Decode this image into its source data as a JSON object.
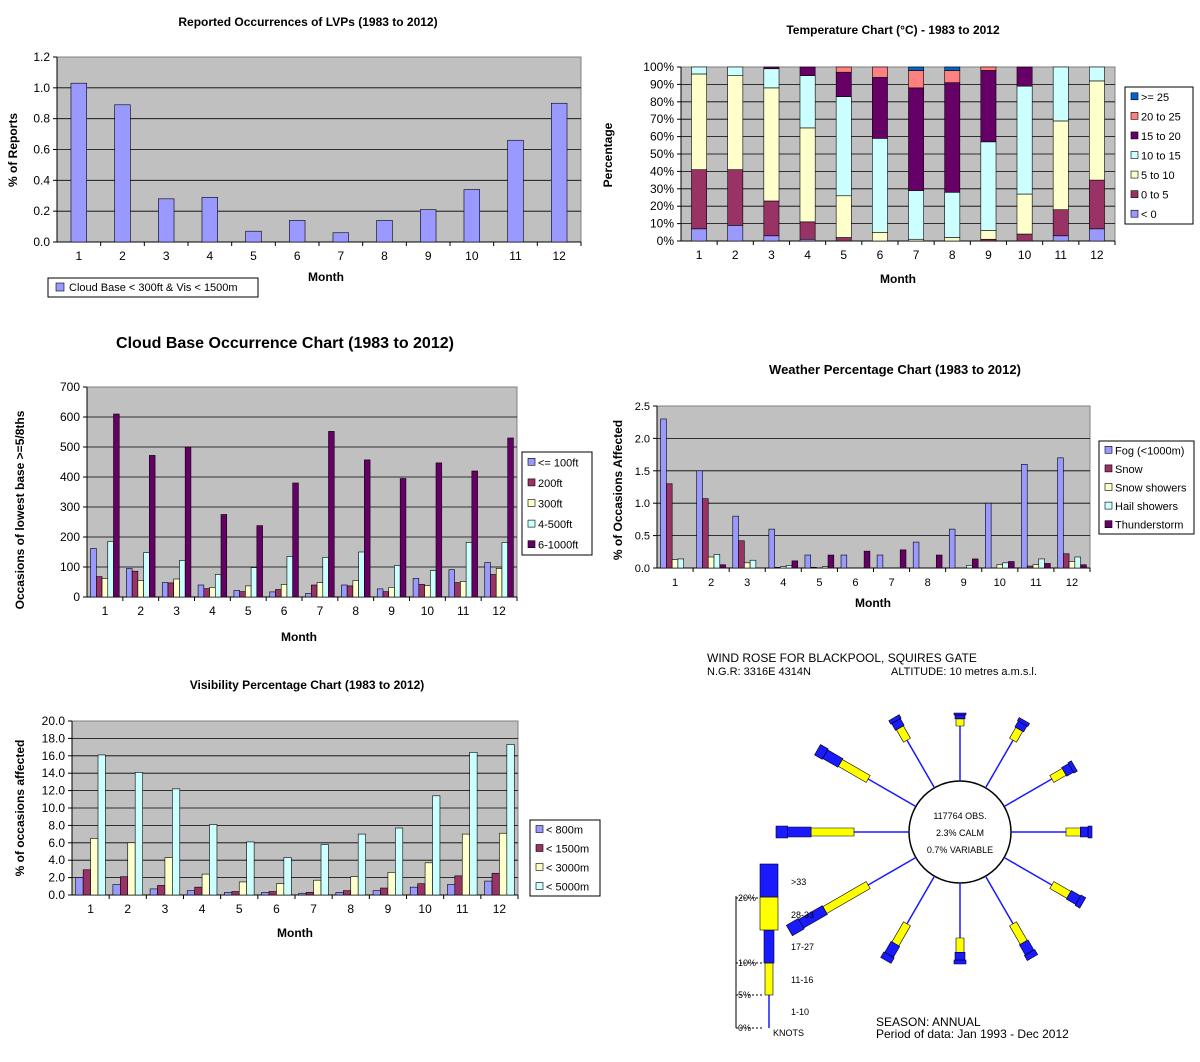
{
  "chart_data": [
    {
      "id": "lvp",
      "type": "bar",
      "title": "Reported Occurrences of LVPs (1983 to 2012)",
      "xlabel": "Month",
      "ylabel": "% of Reports",
      "categories": [
        "1",
        "2",
        "3",
        "4",
        "5",
        "6",
        "7",
        "8",
        "9",
        "10",
        "11",
        "12"
      ],
      "ylim": [
        0,
        1.2
      ],
      "yticks": [
        "0.0",
        "0.2",
        "0.4",
        "0.6",
        "0.8",
        "1.0",
        "1.2"
      ],
      "series": [
        {
          "name": "Cloud Base < 300ft & Vis < 1500m",
          "color": "#9999ff",
          "values": [
            1.03,
            0.89,
            0.28,
            0.29,
            0.07,
            0.14,
            0.06,
            0.14,
            0.21,
            0.34,
            0.66,
            0.9
          ]
        }
      ],
      "legend": "bottom-left",
      "grid": true
    },
    {
      "id": "temp",
      "type": "bar",
      "stacked": true,
      "title": "Temperature Chart (°C) - 1983 to 2012",
      "xlabel": "Month",
      "ylabel": "Percentage",
      "categories": [
        "1",
        "2",
        "3",
        "4",
        "5",
        "6",
        "7",
        "8",
        "9",
        "10",
        "11",
        "12"
      ],
      "ylim": [
        0,
        100
      ],
      "yticks": [
        "0%",
        "10%",
        "20%",
        "30%",
        "40%",
        "50%",
        "60%",
        "70%",
        "80%",
        "90%",
        "100%"
      ],
      "series": [
        {
          "name": "< 0",
          "color": "#9999ff",
          "values": [
            7,
            9,
            3,
            1,
            0,
            0,
            0,
            0,
            0,
            0,
            3,
            7
          ]
        },
        {
          "name": "0 to 5",
          "color": "#993366",
          "values": [
            34,
            32,
            20,
            10,
            2,
            0,
            0,
            0,
            1,
            4,
            15,
            28
          ]
        },
        {
          "name": "5 to 10",
          "color": "#ffffcc",
          "values": [
            55,
            54,
            65,
            54,
            24,
            5,
            1,
            2,
            5,
            23,
            51,
            57
          ]
        },
        {
          "name": "10 to 15",
          "color": "#ccffff",
          "values": [
            4,
            5,
            11,
            30,
            57,
            54,
            28,
            26,
            51,
            62,
            31,
            8
          ]
        },
        {
          "name": "15 to 20",
          "color": "#660066",
          "values": [
            0,
            0,
            1,
            5,
            14,
            35,
            59,
            63,
            41,
            11,
            0,
            0
          ]
        },
        {
          "name": "20 to 25",
          "color": "#ff8080",
          "values": [
            0,
            0,
            0,
            0,
            3,
            6,
            10,
            7,
            2,
            0,
            0,
            0
          ]
        },
        {
          "name": ">= 25",
          "color": "#0066cc",
          "values": [
            0,
            0,
            0,
            0,
            0,
            0,
            2,
            2,
            0,
            0,
            0,
            0
          ]
        }
      ],
      "legend": "right",
      "grid": true
    },
    {
      "id": "cloud",
      "type": "bar",
      "title": "Cloud Base Occurrence Chart (1983 to 2012)",
      "xlabel": "Month",
      "ylabel": "Occasions of lowest base >=5/8ths",
      "categories": [
        "1",
        "2",
        "3",
        "4",
        "5",
        "6",
        "7",
        "8",
        "9",
        "10",
        "11",
        "12"
      ],
      "ylim": [
        0,
        700
      ],
      "yticks": [
        "0",
        "100",
        "200",
        "300",
        "400",
        "500",
        "600",
        "700"
      ],
      "series": [
        {
          "name": "<= 100ft",
          "color": "#9999ff",
          "values": [
            162,
            95,
            48,
            40,
            22,
            17,
            12,
            40,
            27,
            62,
            91,
            115
          ]
        },
        {
          "name": "200ft",
          "color": "#993366",
          "values": [
            68,
            86,
            47,
            28,
            18,
            25,
            40,
            37,
            18,
            42,
            48,
            75
          ]
        },
        {
          "name": "300ft",
          "color": "#ffffcc",
          "values": [
            62,
            55,
            60,
            32,
            37,
            42,
            48,
            55,
            32,
            38,
            52,
            95
          ]
        },
        {
          "name": "4-500ft",
          "color": "#ccffff",
          "values": [
            185,
            148,
            122,
            75,
            98,
            135,
            132,
            150,
            105,
            88,
            182,
            182
          ]
        },
        {
          "name": "6-1000ft",
          "color": "#660066",
          "values": [
            610,
            472,
            500,
            275,
            238,
            380,
            552,
            457,
            395,
            447,
            420,
            530
          ]
        }
      ],
      "legend": "right",
      "grid": true
    },
    {
      "id": "weather",
      "type": "bar",
      "title": "Weather Percentage Chart (1983 to 2012)",
      "xlabel": "Month",
      "ylabel": "% of Occasions Affected",
      "categories": [
        "1",
        "2",
        "3",
        "4",
        "5",
        "6",
        "7",
        "8",
        "9",
        "10",
        "11",
        "12"
      ],
      "ylim": [
        0,
        2.5
      ],
      "yticks": [
        "0.0",
        "0.5",
        "1.0",
        "1.5",
        "2.0",
        "2.5"
      ],
      "series": [
        {
          "name": "Fog (<1000m)",
          "color": "#9999ff",
          "values": [
            2.3,
            1.5,
            0.8,
            0.6,
            0.2,
            0.2,
            0.2,
            0.4,
            0.6,
            1.0,
            1.6,
            1.7
          ]
        },
        {
          "name": "Snow",
          "color": "#993366",
          "values": [
            1.3,
            1.07,
            0.42,
            0.01,
            0.01,
            0,
            0,
            0,
            0,
            0,
            0.03,
            0.22
          ]
        },
        {
          "name": "Snow showers",
          "color": "#ffffcc",
          "values": [
            0.13,
            0.17,
            0.08,
            0.02,
            0,
            0,
            0,
            0,
            0,
            0.05,
            0.05,
            0.1
          ]
        },
        {
          "name": "Hail showers",
          "color": "#ccffff",
          "values": [
            0.14,
            0.21,
            0.12,
            0.04,
            0.02,
            0,
            0,
            0,
            0.04,
            0.08,
            0.14,
            0.17
          ]
        },
        {
          "name": "Thunderstorm",
          "color": "#660066",
          "values": [
            0,
            0.05,
            0,
            0.11,
            0.2,
            0.26,
            0.28,
            0.2,
            0.14,
            0.1,
            0.07,
            0.05
          ]
        }
      ],
      "legend": "right",
      "grid": true
    },
    {
      "id": "vis",
      "type": "bar",
      "title": "Visibility Percentage Chart (1983 to 2012)",
      "xlabel": "Month",
      "ylabel": "% of occasions affected",
      "categories": [
        "1",
        "2",
        "3",
        "4",
        "5",
        "6",
        "7",
        "8",
        "9",
        "10",
        "11",
        "12"
      ],
      "ylim": [
        0,
        20
      ],
      "yticks": [
        "0.0",
        "2.0",
        "4.0",
        "6.0",
        "8.0",
        "10.0",
        "12.0",
        "14.0",
        "16.0",
        "18.0",
        "20.0"
      ],
      "series": [
        {
          "name": "< 800m",
          "color": "#9999ff",
          "values": [
            2.0,
            1.2,
            0.7,
            0.5,
            0.3,
            0.3,
            0.2,
            0.3,
            0.5,
            0.9,
            1.2,
            1.6
          ]
        },
        {
          "name": "< 1500m",
          "color": "#993366",
          "values": [
            2.9,
            2.1,
            1.1,
            0.9,
            0.4,
            0.4,
            0.3,
            0.5,
            0.8,
            1.3,
            2.2,
            2.5
          ]
        },
        {
          "name": "< 3000m",
          "color": "#ffffcc",
          "values": [
            6.5,
            6.0,
            4.3,
            2.4,
            1.5,
            1.3,
            1.7,
            2.1,
            2.6,
            3.7,
            7.0,
            7.1
          ]
        },
        {
          "name": "< 5000m",
          "color": "#ccffff",
          "values": [
            16.1,
            14.1,
            12.2,
            8.1,
            6.1,
            4.3,
            5.8,
            7.0,
            7.7,
            11.4,
            16.4,
            17.3
          ]
        }
      ],
      "legend": "right",
      "grid": true
    }
  ],
  "wind_rose": {
    "title": "WIND ROSE FOR BLACKPOOL, SQUIRES GATE",
    "ngr": "N.G.R: 3316E 4314N",
    "altitude": "ALTITUDE:   10 metres a.m.s.l.",
    "center_lines": [
      "117764 OBS.",
      "2.3% CALM",
      "0.7% VARIABLE"
    ],
    "scale_pct": [
      "20%",
      "10%",
      "5%",
      "0%"
    ],
    "speed_bands": [
      ">33",
      "28-33",
      "17-27",
      "11-16",
      "1-10"
    ],
    "knots": "KNOTS",
    "season": "SEASON: ANNUAL",
    "period": "Period of data: Jan 1993 - Dec 2012",
    "colors": {
      "blue": "#1a1aff",
      "yellow": "#ffff00"
    },
    "directions": [
      {
        "bearing": 0,
        "total": 2.0
      },
      {
        "bearing": 30,
        "total": 3.5
      },
      {
        "bearing": 60,
        "total": 4.0
      },
      {
        "bearing": 90,
        "total": 4.0
      },
      {
        "bearing": 120,
        "total": 5.5
      },
      {
        "bearing": 150,
        "total": 6.0
      },
      {
        "bearing": 180,
        "total": 4.0
      },
      {
        "bearing": 210,
        "total": 6.5
      },
      {
        "bearing": 240,
        "total": 14.0
      },
      {
        "bearing": 270,
        "total": 12.0
      },
      {
        "bearing": 300,
        "total": 9.0
      },
      {
        "bearing": 330,
        "total": 4.0
      }
    ]
  }
}
